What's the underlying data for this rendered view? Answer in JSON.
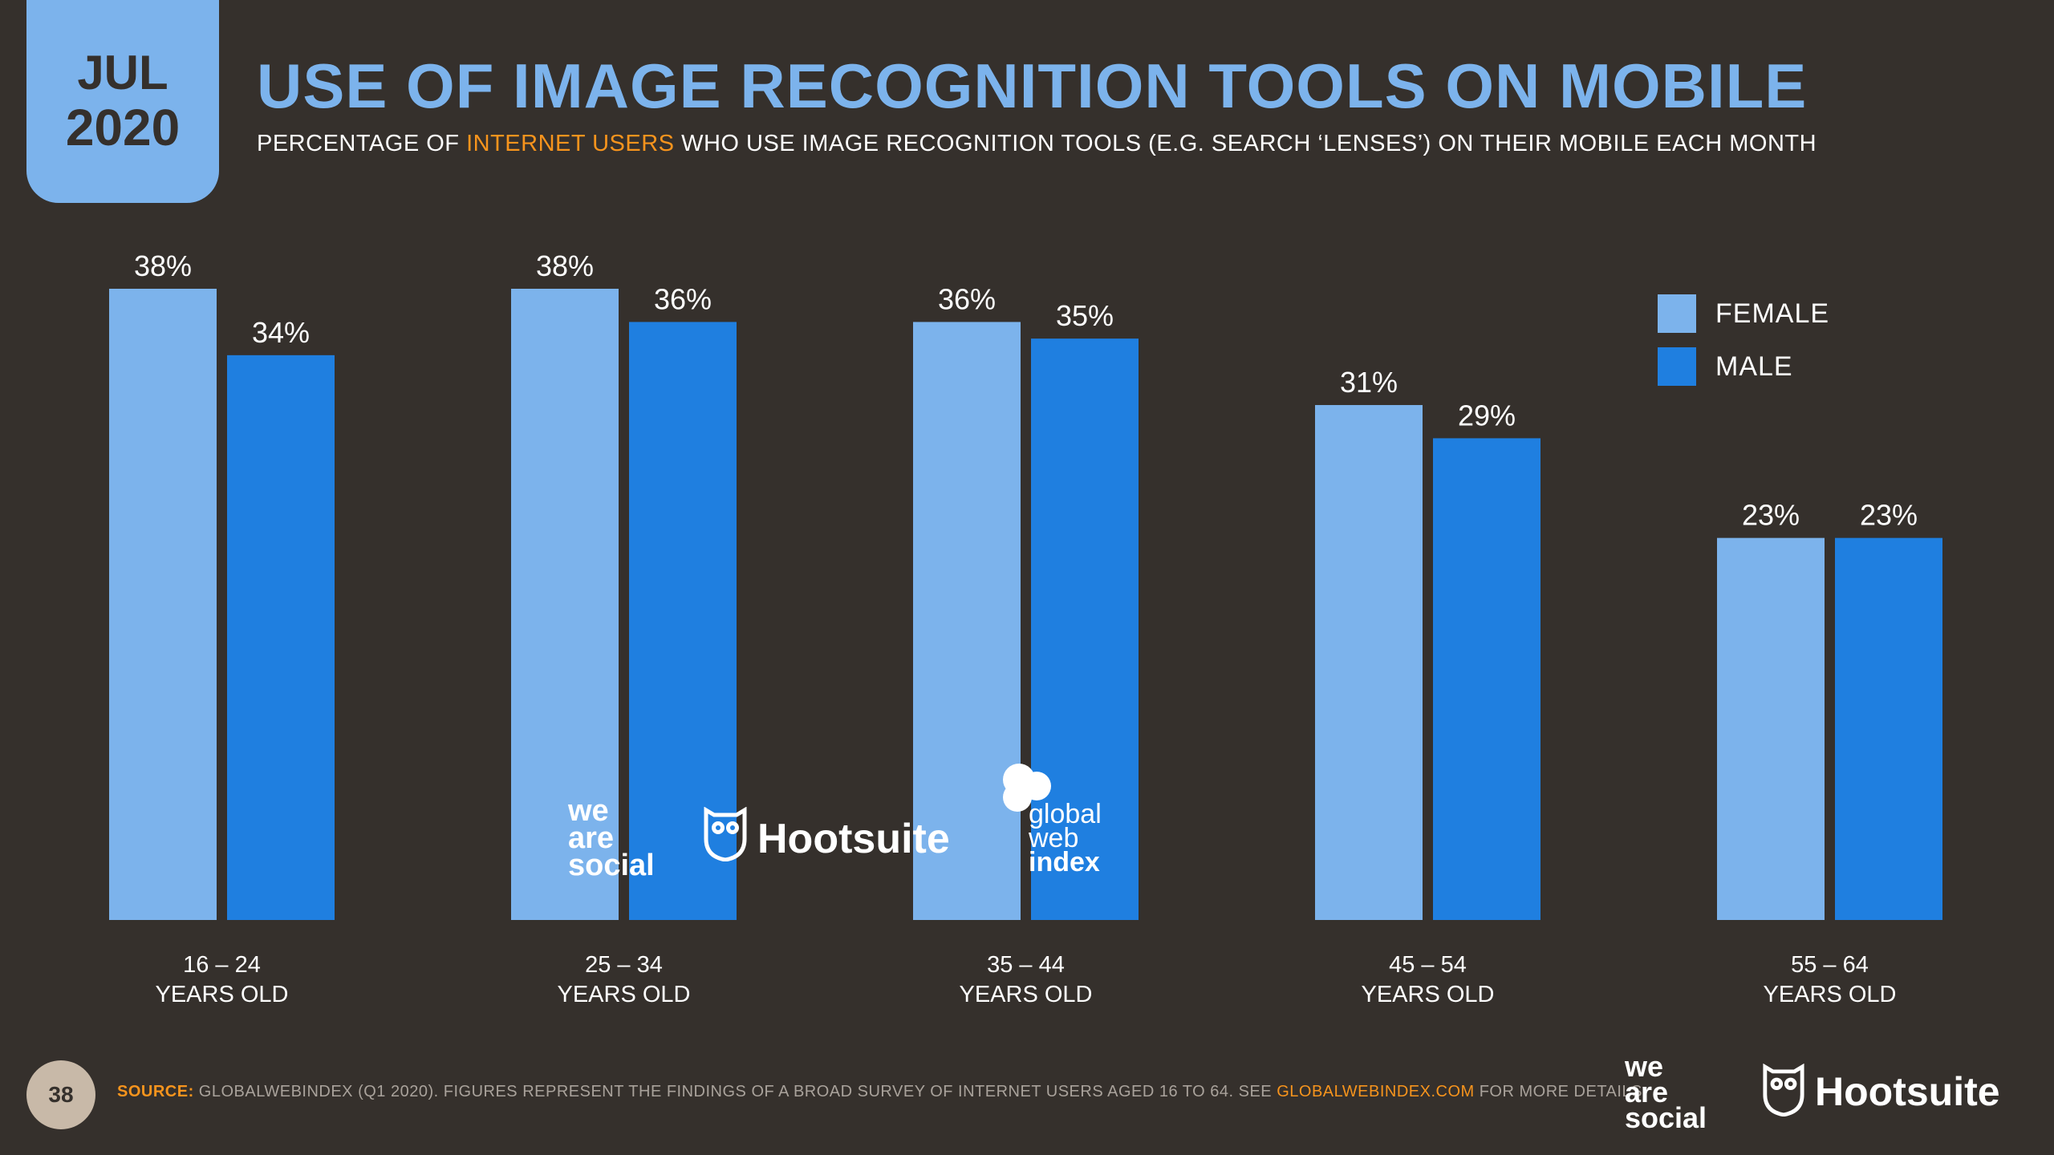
{
  "badge": {
    "month": "JUL",
    "year": "2020"
  },
  "header": {
    "title": "USE OF IMAGE RECOGNITION TOOLS ON MOBILE",
    "subtitle_pre": "PERCENTAGE OF ",
    "subtitle_highlight": "INTERNET USERS",
    "subtitle_post": " WHO USE IMAGE RECOGNITION TOOLS (E.G. SEARCH ‘LENSES’) ON THEIR MOBILE EACH MONTH"
  },
  "chart_data": {
    "type": "bar",
    "categories": [
      [
        "16 – 24",
        "YEARS OLD"
      ],
      [
        "25 – 34",
        "YEARS OLD"
      ],
      [
        "35 – 44",
        "YEARS OLD"
      ],
      [
        "45 – 54",
        "YEARS OLD"
      ],
      [
        "55 – 64",
        "YEARS OLD"
      ]
    ],
    "series": [
      {
        "name": "FEMALE",
        "values": [
          38,
          38,
          36,
          31,
          23
        ],
        "labels": [
          "38%",
          "38%",
          "36%",
          "31%",
          "23%"
        ],
        "color": "#7cb3ec"
      },
      {
        "name": "MALE",
        "values": [
          34,
          36,
          35,
          29,
          23
        ],
        "labels": [
          "34%",
          "36%",
          "35%",
          "29%",
          "23%"
        ],
        "color": "#1f7fe0"
      }
    ],
    "ylim": [
      0,
      38
    ],
    "legend_position": "top-right",
    "grid": false
  },
  "watermark": {
    "logo1": [
      "we",
      "are",
      "social"
    ],
    "logo2": "Hootsuite",
    "logo3": [
      "global",
      "web",
      "index"
    ]
  },
  "footer": {
    "page_number": "38",
    "source_label": "SOURCE:",
    "source_text": " GLOBALWEBINDEX (Q1 2020). FIGURES REPRESENT THE FINDINGS OF A BROAD SURVEY OF INTERNET USERS AGED 16 TO 64. SEE ",
    "source_link": "GLOBALWEBINDEX.COM",
    "source_end": " FOR MORE DETAILS.",
    "logo1": [
      "we",
      "are",
      "social"
    ],
    "logo2": "Hootsuite"
  },
  "colors": {
    "background": "#35302c",
    "accent": "#7cb3ec",
    "highlight": "#f7941d"
  }
}
